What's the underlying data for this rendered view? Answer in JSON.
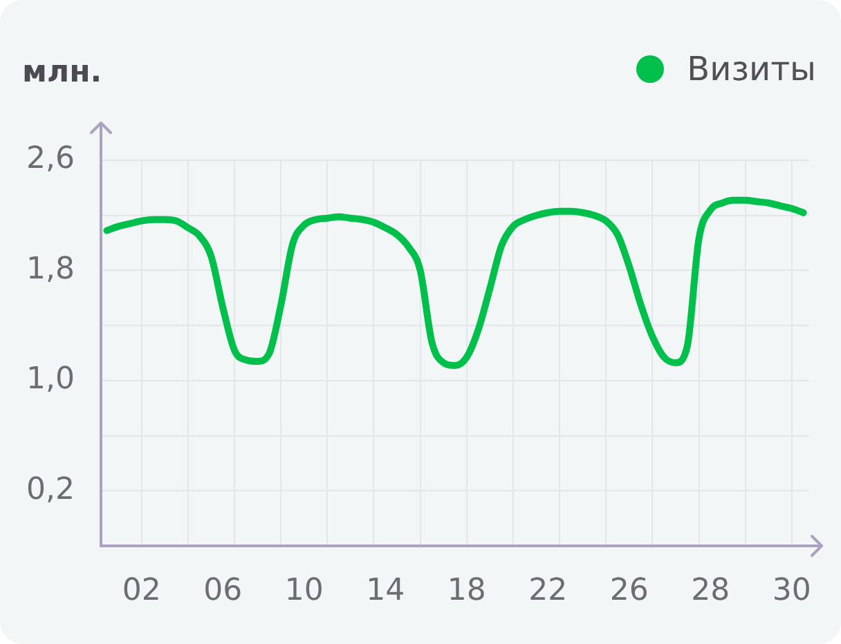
{
  "chart_data": {
    "type": "line",
    "ylabel": "млн.",
    "categories": [
      null,
      null,
      null,
      "02",
      null,
      null,
      null,
      null,
      null,
      null,
      "06",
      null,
      null,
      null,
      null,
      null,
      null,
      "10",
      null,
      null,
      null,
      null,
      null,
      null,
      "14",
      null,
      null,
      null,
      null,
      null,
      null,
      "18",
      null,
      null,
      null,
      null,
      null,
      null,
      "22",
      null,
      null,
      null,
      null,
      null,
      null,
      "26",
      null,
      null,
      null,
      null,
      null,
      null,
      "28",
      null,
      null,
      null,
      null,
      null,
      null,
      "30",
      null
    ],
    "series": [
      {
        "name": "Визиты",
        "color": "#00c04b",
        "values": [
          2.09,
          2.12,
          2.14,
          2.16,
          2.17,
          2.17,
          2.16,
          2.11,
          2.05,
          1.9,
          1.53,
          1.22,
          1.15,
          1.14,
          1.2,
          1.55,
          1.99,
          2.13,
          2.17,
          2.18,
          2.19,
          2.18,
          2.17,
          2.15,
          2.11,
          2.06,
          1.97,
          1.8,
          1.28,
          1.13,
          1.11,
          1.17,
          1.37,
          1.67,
          1.98,
          2.12,
          2.17,
          2.2,
          2.22,
          2.23,
          2.23,
          2.22,
          2.2,
          2.16,
          2.06,
          1.83,
          1.55,
          1.32,
          1.17,
          1.13,
          1.25,
          2.03,
          2.24,
          2.29,
          2.31,
          2.31,
          2.3,
          2.29,
          2.27,
          2.25,
          2.22
        ]
      }
    ],
    "ylim": [
      -0.2,
      2.6
    ],
    "yticks": [
      {
        "value": 0.2,
        "label": "0,2"
      },
      {
        "value": 0.6,
        "label": null
      },
      {
        "value": 1,
        "label": "1,0"
      },
      {
        "value": 1.4,
        "label": null
      },
      {
        "value": 1.8,
        "label": "1,8"
      },
      {
        "value": 2.2,
        "label": null
      },
      {
        "value": 2.6,
        "label": "2,6"
      }
    ],
    "grid": true,
    "legend": "top right",
    "marker": "none",
    "line_style": "solid"
  }
}
